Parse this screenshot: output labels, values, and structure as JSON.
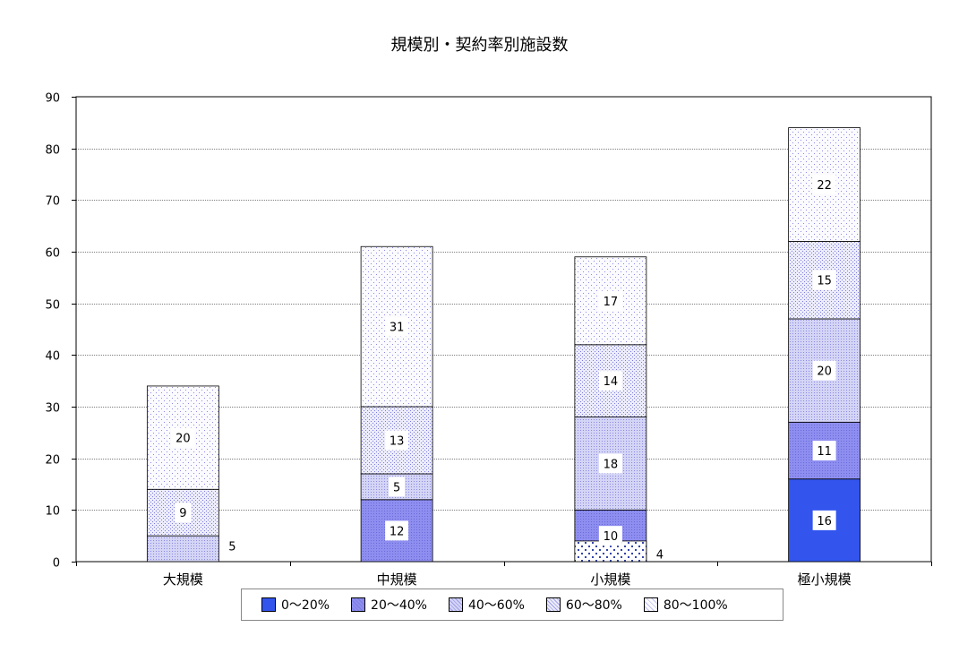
{
  "chart_data": {
    "type": "bar",
    "stacked": true,
    "title": "規模別・契約率別施設数",
    "categories": [
      "大規模",
      "中規模",
      "小規模",
      "極小規模"
    ],
    "ylim": [
      0,
      90
    ],
    "yticks": [
      0,
      10,
      20,
      30,
      40,
      50,
      60,
      70,
      80,
      90
    ],
    "grid": true,
    "legend_position": "bottom",
    "series": [
      {
        "name": "0～20%",
        "values": [
          0,
          0,
          0,
          16
        ],
        "color": "#3355ee",
        "pattern": "solid"
      },
      {
        "name": "20～40%",
        "values": [
          0,
          12,
          10,
          11
        ],
        "color": "#8e8ef0",
        "pattern": "dense"
      },
      {
        "name": "40～60%",
        "values": [
          5,
          5,
          18,
          20
        ],
        "color": "#c6c6f4",
        "pattern": "medium"
      },
      {
        "name": "60～80%",
        "values": [
          9,
          13,
          14,
          15
        ],
        "color": "#dcdcf8",
        "pattern": "light"
      },
      {
        "name": "80～100%",
        "values": [
          20,
          31,
          17,
          22
        ],
        "color": "#f2f2fc",
        "pattern": "sparse"
      }
    ],
    "extra_segments": [
      {
        "category_index": 2,
        "series_index": 0,
        "value": 4,
        "pattern": "dots"
      }
    ],
    "data_labels": [
      {
        "category_index": 0,
        "series_index": 2,
        "text": "5",
        "outside": true
      },
      {
        "category_index": 0,
        "series_index": 3,
        "text": "9"
      },
      {
        "category_index": 0,
        "series_index": 4,
        "text": "20"
      },
      {
        "category_index": 1,
        "series_index": 1,
        "text": "12"
      },
      {
        "category_index": 1,
        "series_index": 2,
        "text": "5"
      },
      {
        "category_index": 1,
        "series_index": 3,
        "text": "13"
      },
      {
        "category_index": 1,
        "series_index": 4,
        "text": "31"
      },
      {
        "category_index": 2,
        "series_index": 0,
        "text": "4",
        "outside": true
      },
      {
        "category_index": 2,
        "series_index": 1,
        "text": "10"
      },
      {
        "category_index": 2,
        "series_index": 2,
        "text": "18"
      },
      {
        "category_index": 2,
        "series_index": 3,
        "text": "14"
      },
      {
        "category_index": 2,
        "series_index": 4,
        "text": "17"
      },
      {
        "category_index": 3,
        "series_index": 0,
        "text": "16"
      },
      {
        "category_index": 3,
        "series_index": 1,
        "text": "11"
      },
      {
        "category_index": 3,
        "series_index": 2,
        "text": "20"
      },
      {
        "category_index": 3,
        "series_index": 3,
        "text": "15"
      },
      {
        "category_index": 3,
        "series_index": 4,
        "text": "22"
      }
    ]
  }
}
